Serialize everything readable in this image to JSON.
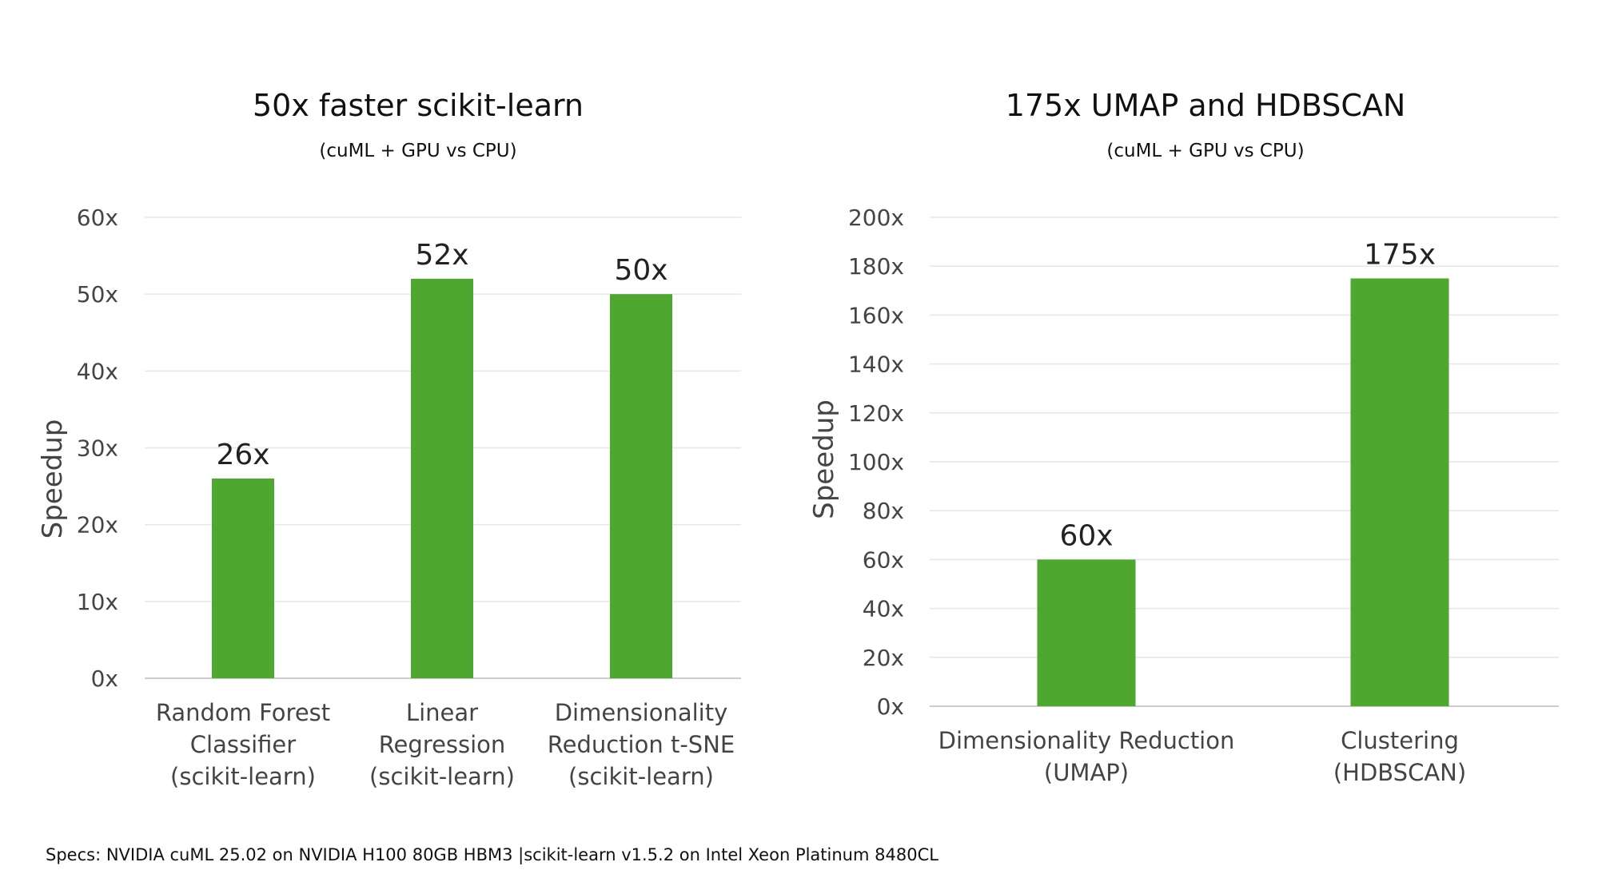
{
  "chart_data": [
    {
      "type": "bar",
      "title": "50x faster scikit-learn",
      "subtitle": "(cuML + GPU vs CPU)",
      "ylabel": "Speedup",
      "xlabel": "",
      "categories": [
        [
          "Random Forest",
          "Classifier",
          "(scikit-learn)"
        ],
        [
          "Linear",
          "Regression",
          "(scikit-learn)"
        ],
        [
          "Dimensionality",
          "Reduction t-SNE",
          "(scikit-learn)"
        ]
      ],
      "values": [
        26,
        52,
        50
      ],
      "data_labels": [
        "26x",
        "52x",
        "50x"
      ],
      "ylim": [
        0,
        60
      ],
      "yticks": [
        0,
        10,
        20,
        30,
        40,
        50,
        60
      ],
      "ytick_labels": [
        "0x",
        "10x",
        "20x",
        "30x",
        "40x",
        "50x",
        "60x"
      ],
      "grid": true,
      "legend": "none",
      "bar_color": "#4ea72e"
    },
    {
      "type": "bar",
      "title": "175x UMAP and HDBSCAN",
      "subtitle": "(cuML + GPU vs CPU)",
      "ylabel": "Speedup",
      "xlabel": "",
      "categories": [
        [
          "Dimensionality Reduction",
          "(UMAP)"
        ],
        [
          "Clustering",
          "(HDBSCAN)"
        ]
      ],
      "values": [
        60,
        175
      ],
      "data_labels": [
        "60x",
        "175x"
      ],
      "ylim": [
        0,
        200
      ],
      "yticks": [
        0,
        20,
        40,
        60,
        80,
        100,
        120,
        140,
        160,
        180,
        200
      ],
      "ytick_labels": [
        "0x",
        "20x",
        "40x",
        "60x",
        "80x",
        "100x",
        "120x",
        "140x",
        "160x",
        "180x",
        "200x"
      ],
      "grid": true,
      "legend": "none",
      "bar_color": "#4ea72e"
    }
  ],
  "footer": {
    "specs_label": "Specs:",
    "specs_text": " NVIDIA cuML 25.02 on NVIDIA H100 80GB HBM3 |scikit-learn v1.5.2 on Intel Xeon Platinum 8480CL"
  }
}
